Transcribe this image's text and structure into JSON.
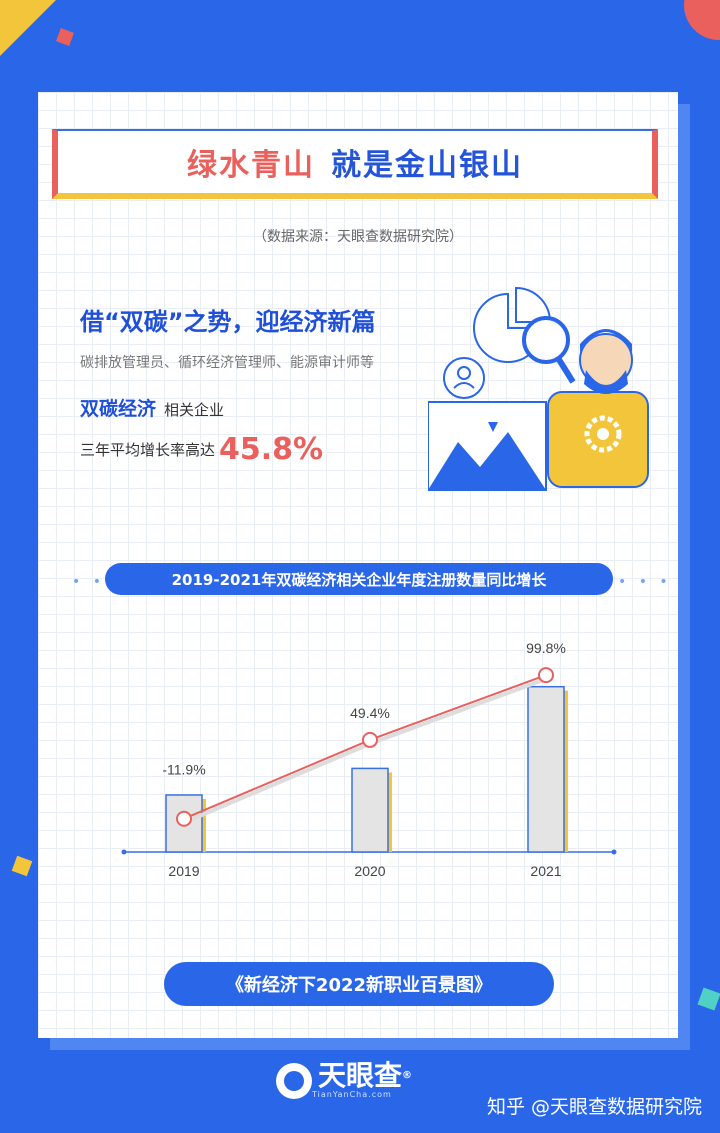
{
  "title": {
    "part1": "绿水青山",
    "part2": "就是金山银山"
  },
  "source": "（数据来源：天眼查数据研究院）",
  "headline": "借“双碳”之势，迎经济新篇",
  "jobs": "碳排放管理员、循环经济管理师、能源审计师等",
  "sector": {
    "name": "双碳经济",
    "suffix": "相关企业"
  },
  "growth": {
    "label": "三年平均增长率高达",
    "value": "45.8%"
  },
  "chart_data": {
    "type": "bar+line",
    "title": "2019-2021年双碳经济相关企业年度注册数量同比增长",
    "categories": [
      "2019",
      "2020",
      "2021"
    ],
    "growth_pct": [
      -11.9,
      49.4,
      99.8
    ],
    "labels": [
      "-11.9%",
      "49.4%",
      "99.8%"
    ],
    "bar_relative_height": [
      0.3,
      0.44,
      0.87
    ],
    "colors": {
      "bar": "#e4e4e4",
      "bar_edge": "#3a6fe4",
      "bar_side": "#f3c53a",
      "line": "#e9605d",
      "axis": "#3a6fe4"
    }
  },
  "footer_pill": "《新经济下2022新职业百景图》",
  "logo": {
    "name": "天眼查",
    "url": "TianYanCha.com",
    "reg": "®"
  },
  "watermark": "知乎 @天眼查数据研究院",
  "colors": {
    "background": "#2a66e8",
    "accent_red": "#e9605d",
    "accent_blue": "#2050d8",
    "accent_yellow": "#f3c53a"
  }
}
